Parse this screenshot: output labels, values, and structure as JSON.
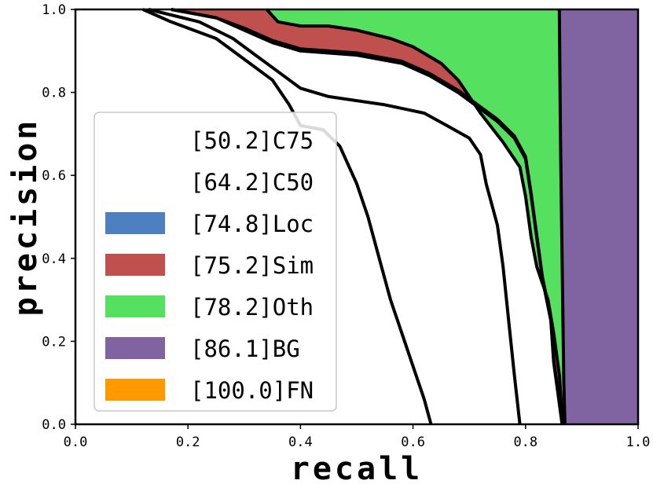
{
  "chart_data": {
    "type": "area",
    "title": "",
    "xlabel": "recall",
    "ylabel": "precision",
    "xlim": [
      0.0,
      1.0
    ],
    "ylim": [
      0.0,
      1.0
    ],
    "xticks": [
      "0.0",
      "0.2",
      "0.4",
      "0.6",
      "0.8",
      "1.0"
    ],
    "yticks": [
      "0.0",
      "0.2",
      "0.4",
      "0.6",
      "0.8",
      "1.0"
    ],
    "grid": false,
    "legend_position": "lower-left",
    "series": [
      {
        "key": "c75",
        "name": "[50.2]C75",
        "color": "#ffffff",
        "points": [
          [
            0.12,
            1.0
          ],
          [
            0.17,
            0.97
          ],
          [
            0.25,
            0.93
          ],
          [
            0.3,
            0.88
          ],
          [
            0.35,
            0.83
          ],
          [
            0.38,
            0.77
          ],
          [
            0.4,
            0.72
          ],
          [
            0.44,
            0.71
          ],
          [
            0.47,
            0.67
          ],
          [
            0.5,
            0.58
          ],
          [
            0.52,
            0.5
          ],
          [
            0.54,
            0.4
          ],
          [
            0.56,
            0.3
          ],
          [
            0.58,
            0.22
          ],
          [
            0.6,
            0.14
          ],
          [
            0.62,
            0.06
          ],
          [
            0.632,
            0.0
          ]
        ]
      },
      {
        "key": "c50",
        "name": "[64.2]C50",
        "color": "#ffffff",
        "points": [
          [
            0.13,
            1.0
          ],
          [
            0.22,
            0.97
          ],
          [
            0.28,
            0.93
          ],
          [
            0.32,
            0.89
          ],
          [
            0.36,
            0.85
          ],
          [
            0.4,
            0.81
          ],
          [
            0.45,
            0.79
          ],
          [
            0.55,
            0.77
          ],
          [
            0.62,
            0.75
          ],
          [
            0.66,
            0.72
          ],
          [
            0.7,
            0.69
          ],
          [
            0.72,
            0.65
          ],
          [
            0.73,
            0.58
          ],
          [
            0.75,
            0.48
          ],
          [
            0.76,
            0.38
          ],
          [
            0.77,
            0.25
          ],
          [
            0.78,
            0.12
          ],
          [
            0.79,
            0.0
          ]
        ]
      },
      {
        "key": "loc",
        "name": "[74.8]Loc",
        "color": "#4c80c0",
        "points": [
          [
            0.17,
            1.0
          ],
          [
            0.25,
            0.98
          ],
          [
            0.3,
            0.95
          ],
          [
            0.35,
            0.92
          ],
          [
            0.4,
            0.9
          ],
          [
            0.5,
            0.89
          ],
          [
            0.58,
            0.87
          ],
          [
            0.63,
            0.84
          ],
          [
            0.68,
            0.8
          ],
          [
            0.72,
            0.76
          ],
          [
            0.75,
            0.73
          ],
          [
            0.78,
            0.69
          ],
          [
            0.8,
            0.64
          ],
          [
            0.81,
            0.55
          ],
          [
            0.82,
            0.45
          ],
          [
            0.83,
            0.35
          ],
          [
            0.845,
            0.25
          ],
          [
            0.85,
            0.15
          ],
          [
            0.86,
            0.05
          ],
          [
            0.865,
            0.0
          ]
        ]
      },
      {
        "key": "sim",
        "name": "[75.2]Sim",
        "color": "#c0504d",
        "points": [
          [
            0.17,
            1.0
          ],
          [
            0.25,
            0.98
          ],
          [
            0.3,
            0.955
          ],
          [
            0.35,
            0.925
          ],
          [
            0.4,
            0.905
          ],
          [
            0.5,
            0.895
          ],
          [
            0.58,
            0.875
          ],
          [
            0.63,
            0.845
          ],
          [
            0.68,
            0.805
          ],
          [
            0.72,
            0.765
          ],
          [
            0.75,
            0.735
          ],
          [
            0.78,
            0.695
          ],
          [
            0.8,
            0.645
          ],
          [
            0.81,
            0.555
          ],
          [
            0.82,
            0.455
          ],
          [
            0.83,
            0.355
          ],
          [
            0.845,
            0.255
          ],
          [
            0.85,
            0.155
          ],
          [
            0.86,
            0.055
          ],
          [
            0.866,
            0.0
          ]
        ]
      },
      {
        "key": "oth",
        "name": "[78.2]Oth",
        "color": "#55e060",
        "points": [
          [
            0.34,
            1.0
          ],
          [
            0.36,
            0.97
          ],
          [
            0.4,
            0.96
          ],
          [
            0.45,
            0.96
          ],
          [
            0.5,
            0.95
          ],
          [
            0.56,
            0.93
          ],
          [
            0.6,
            0.91
          ],
          [
            0.65,
            0.87
          ],
          [
            0.68,
            0.83
          ],
          [
            0.7,
            0.79
          ],
          [
            0.72,
            0.75
          ],
          [
            0.76,
            0.68
          ],
          [
            0.79,
            0.62
          ],
          [
            0.8,
            0.55
          ],
          [
            0.81,
            0.45
          ],
          [
            0.82,
            0.38
          ],
          [
            0.84,
            0.3
          ],
          [
            0.85,
            0.22
          ],
          [
            0.86,
            0.12
          ],
          [
            0.866,
            0.0
          ]
        ]
      },
      {
        "key": "bg",
        "name": "[86.1]BG",
        "color": "#8064a2",
        "points": [
          [
            0.86,
            1.0
          ],
          [
            0.862,
            0.7
          ],
          [
            0.865,
            0.4
          ],
          [
            0.868,
            0.1
          ],
          [
            0.87,
            0.0
          ]
        ]
      },
      {
        "key": "fn",
        "name": "[100.0]FN",
        "color": "#ff9900",
        "points": [
          [
            1.0,
            1.0
          ],
          [
            1.0,
            0.0
          ]
        ]
      }
    ]
  }
}
